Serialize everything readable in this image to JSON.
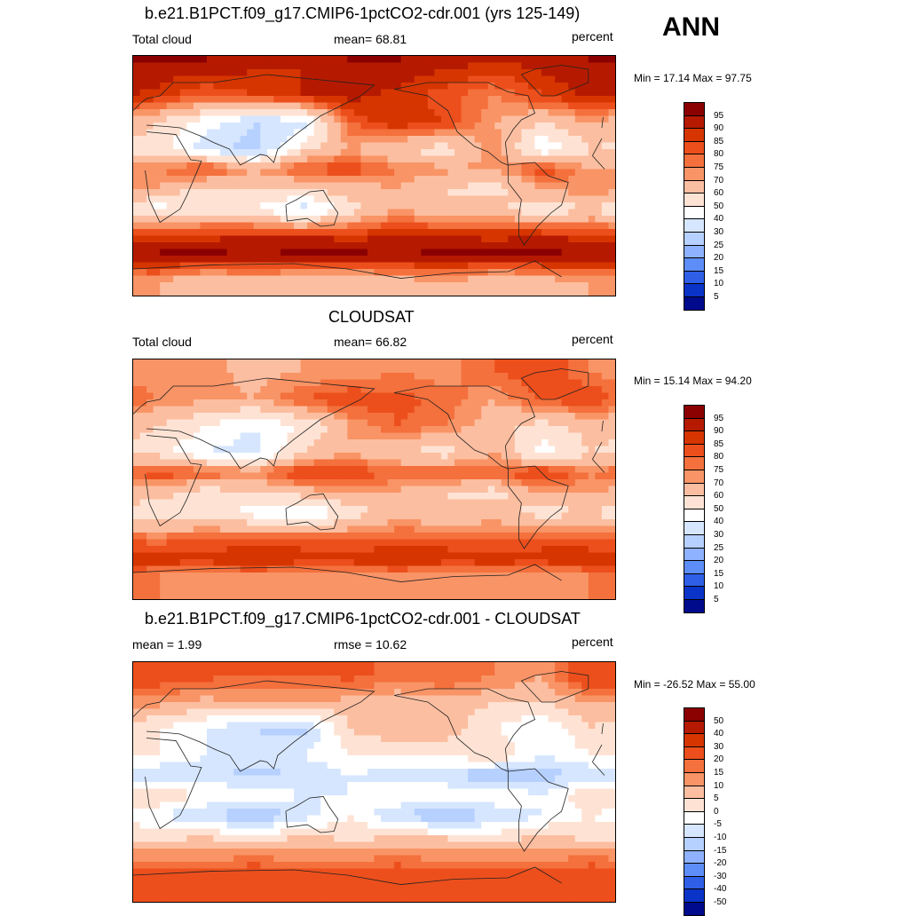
{
  "season": "ANN",
  "panels": [
    {
      "title": "b.e21.B1PCT.f09_g17.CMIP6-1pctCO2-cdr.001 (yrs 125-149)",
      "left_label": "Total cloud",
      "center_label": "mean=  68.81",
      "right_label": "percent",
      "minmax": "Min =  17.14 Max =  97.75"
    },
    {
      "title": "CLOUDSAT",
      "left_label": "Total cloud",
      "center_label": "mean=  66.82",
      "right_label": "percent",
      "minmax": "Min =  15.14 Max =  94.20"
    },
    {
      "title": "b.e21.B1PCT.f09_g17.CMIP6-1pctCO2-cdr.001 - CLOUDSAT",
      "left_label": "mean =   1.99",
      "center_label": "rmse =  10.62",
      "right_label": "percent",
      "minmax": "Min = -26.52 Max =  55.00"
    }
  ],
  "chart_data": [
    {
      "type": "heatmap",
      "title": "b.e21.B1PCT.f09_g17.CMIP6-1pctCO2-cdr.001 (yrs 125-149)",
      "units": "percent",
      "mean": 68.81,
      "min": 17.14,
      "max": 97.75,
      "colorbar_levels": [
        "95",
        "90",
        "85",
        "80",
        "75",
        "70",
        "60",
        "50",
        "40",
        "30",
        "25",
        "20",
        "15",
        "10",
        "5"
      ],
      "colorbar_colors": [
        "#8b0000",
        "#b51a00",
        "#d63500",
        "#ec4f1c",
        "#f4703c",
        "#f99466",
        "#fcbea0",
        "#fee3d4",
        "#ffffff",
        "#d6e6ff",
        "#b6d0ff",
        "#8eb2ff",
        "#5d8df7",
        "#2e5fe6",
        "#0a33c8",
        "#000a8c"
      ],
      "band_values": [
        {
          "lat": 85,
          "values": [
            95,
            95,
            92,
            90,
            95,
            95,
            92,
            90,
            92,
            95
          ]
        },
        {
          "lat": 60,
          "values": [
            88,
            80,
            85,
            90,
            92,
            88,
            82,
            75,
            85,
            92
          ]
        },
        {
          "lat": 40,
          "values": [
            60,
            45,
            30,
            35,
            80,
            90,
            85,
            70,
            60,
            70
          ]
        },
        {
          "lat": 20,
          "values": [
            55,
            35,
            25,
            55,
            70,
            60,
            55,
            75,
            40,
            60
          ]
        },
        {
          "lat": 5,
          "values": [
            75,
            85,
            70,
            82,
            85,
            75,
            72,
            70,
            85,
            70
          ]
        },
        {
          "lat": -10,
          "values": [
            70,
            55,
            60,
            60,
            65,
            70,
            60,
            55,
            70,
            75
          ]
        },
        {
          "lat": -25,
          "values": [
            45,
            55,
            50,
            35,
            55,
            70,
            60,
            65,
            50,
            60
          ]
        },
        {
          "lat": -45,
          "values": [
            85,
            88,
            90,
            90,
            88,
            90,
            90,
            88,
            90,
            88
          ]
        },
        {
          "lat": -60,
          "values": [
            97,
            97,
            95,
            97,
            97,
            95,
            97,
            97,
            97,
            95
          ]
        },
        {
          "lat": -80,
          "values": [
            70,
            60,
            65,
            60,
            60,
            65,
            70,
            60,
            65,
            70
          ]
        }
      ]
    },
    {
      "type": "heatmap",
      "title": "CLOUDSAT",
      "units": "percent",
      "mean": 66.82,
      "min": 15.14,
      "max": 94.2,
      "colorbar_levels": [
        "95",
        "90",
        "85",
        "80",
        "75",
        "70",
        "60",
        "50",
        "40",
        "30",
        "25",
        "20",
        "15",
        "10",
        "5"
      ],
      "colorbar_colors": [
        "#8b0000",
        "#b51a00",
        "#d63500",
        "#ec4f1c",
        "#f4703c",
        "#f99466",
        "#fcbea0",
        "#fee3d4",
        "#ffffff",
        "#d6e6ff",
        "#b6d0ff",
        "#8eb2ff",
        "#5d8df7",
        "#2e5fe6",
        "#0a33c8",
        "#000a8c"
      ],
      "band_values": [
        {
          "lat": 80,
          "values": [
            70,
            72,
            68,
            70,
            72,
            75,
            72,
            80,
            85,
            75
          ]
        },
        {
          "lat": 60,
          "values": [
            75,
            72,
            70,
            80,
            85,
            82,
            78,
            70,
            82,
            85
          ]
        },
        {
          "lat": 40,
          "values": [
            60,
            50,
            40,
            50,
            70,
            80,
            75,
            65,
            55,
            65
          ]
        },
        {
          "lat": 20,
          "values": [
            55,
            40,
            35,
            60,
            70,
            60,
            55,
            70,
            45,
            60
          ]
        },
        {
          "lat": 5,
          "values": [
            85,
            80,
            75,
            88,
            85,
            80,
            82,
            80,
            88,
            75
          ]
        },
        {
          "lat": -10,
          "values": [
            65,
            55,
            60,
            65,
            70,
            68,
            60,
            55,
            72,
            70
          ]
        },
        {
          "lat": -25,
          "values": [
            50,
            55,
            45,
            35,
            55,
            65,
            60,
            65,
            55,
            60
          ]
        },
        {
          "lat": -45,
          "values": [
            78,
            80,
            82,
            82,
            80,
            82,
            82,
            80,
            82,
            80
          ]
        },
        {
          "lat": -60,
          "values": [
            88,
            88,
            90,
            88,
            88,
            90,
            88,
            88,
            88,
            90
          ]
        },
        {
          "lat": -72,
          "values": [
            75,
            72,
            75,
            72,
            72,
            75,
            72,
            75,
            72,
            75
          ]
        }
      ]
    },
    {
      "type": "heatmap",
      "title": "b.e21.B1PCT.f09_g17.CMIP6-1pctCO2-cdr.001 - CLOUDSAT",
      "units": "percent",
      "mean": 1.99,
      "rmse": 10.62,
      "min": -26.52,
      "max": 55.0,
      "colorbar_levels": [
        "50",
        "40",
        "30",
        "20",
        "15",
        "10",
        "5",
        "0",
        "-5",
        "-10",
        "-15",
        "-20",
        "-30",
        "-40",
        "-50"
      ],
      "colorbar_colors": [
        "#8b0000",
        "#b51a00",
        "#d63500",
        "#ec4f1c",
        "#f4703c",
        "#f99466",
        "#fcbea0",
        "#fee3d4",
        "#ffffff",
        "#d6e6ff",
        "#b6d0ff",
        "#8eb2ff",
        "#5d8df7",
        "#2e5fe6",
        "#0a33c8",
        "#000a8c"
      ],
      "band_values": [
        {
          "lat": 80,
          "values": [
            25,
            22,
            20,
            20,
            22,
            18,
            20,
            15,
            10,
            30
          ]
        },
        {
          "lat": 60,
          "values": [
            12,
            8,
            10,
            10,
            8,
            5,
            8,
            5,
            5,
            10
          ]
        },
        {
          "lat": 40,
          "values": [
            0,
            -5,
            -10,
            -12,
            5,
            10,
            8,
            0,
            -5,
            5
          ]
        },
        {
          "lat": 20,
          "values": [
            0,
            -5,
            -8,
            -5,
            0,
            0,
            0,
            5,
            -5,
            0
          ]
        },
        {
          "lat": 5,
          "values": [
            -10,
            -8,
            -12,
            -10,
            -5,
            -8,
            -10,
            -15,
            -12,
            -10
          ]
        },
        {
          "lat": -10,
          "values": [
            5,
            0,
            0,
            -5,
            -5,
            0,
            0,
            0,
            -5,
            5
          ]
        },
        {
          "lat": -25,
          "values": [
            -5,
            -10,
            -15,
            -8,
            0,
            -10,
            -15,
            -10,
            -5,
            0
          ]
        },
        {
          "lat": -45,
          "values": [
            5,
            8,
            5,
            8,
            5,
            8,
            8,
            5,
            8,
            5
          ]
        },
        {
          "lat": -60,
          "values": [
            15,
            15,
            18,
            15,
            15,
            18,
            15,
            15,
            15,
            18
          ]
        },
        {
          "lat": -72,
          "values": [
            30,
            28,
            30,
            28,
            30,
            28,
            30,
            28,
            30,
            28
          ]
        }
      ]
    }
  ]
}
